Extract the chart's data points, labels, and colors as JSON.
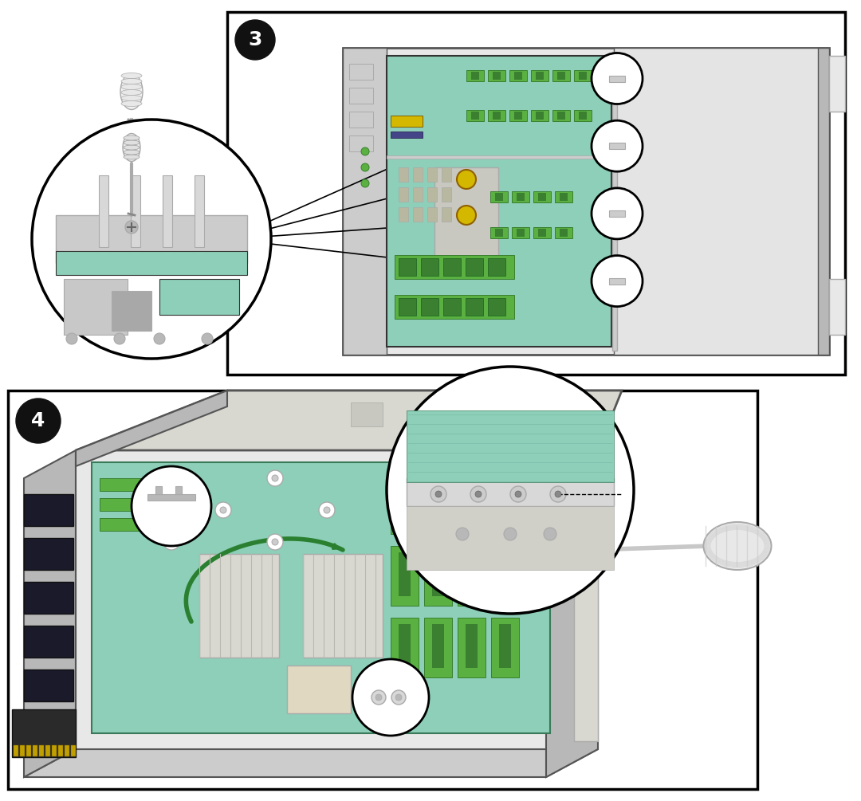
{
  "background_color": "#ffffff",
  "fig_w": 10.8,
  "fig_h": 10.05,
  "colors": {
    "board_teal": "#8dcfb8",
    "board_teal2": "#7bbfaa",
    "green_bright": "#5ab040",
    "green_dark": "#3a8030",
    "metal_light": "#e8e8e8",
    "metal_mid": "#cccccc",
    "metal_dark": "#aaaaaa",
    "metal_darker": "#888888",
    "chassis_light": "#d8d8d8",
    "chassis_mid": "#b8b8b8",
    "yellow_screw": "#d4b800",
    "outline": "#333333",
    "black": "#111111",
    "white": "#ffffff",
    "gray_light": "#f0f0f0",
    "blue_teal": "#6ab8c8",
    "dark_gray": "#555555"
  }
}
